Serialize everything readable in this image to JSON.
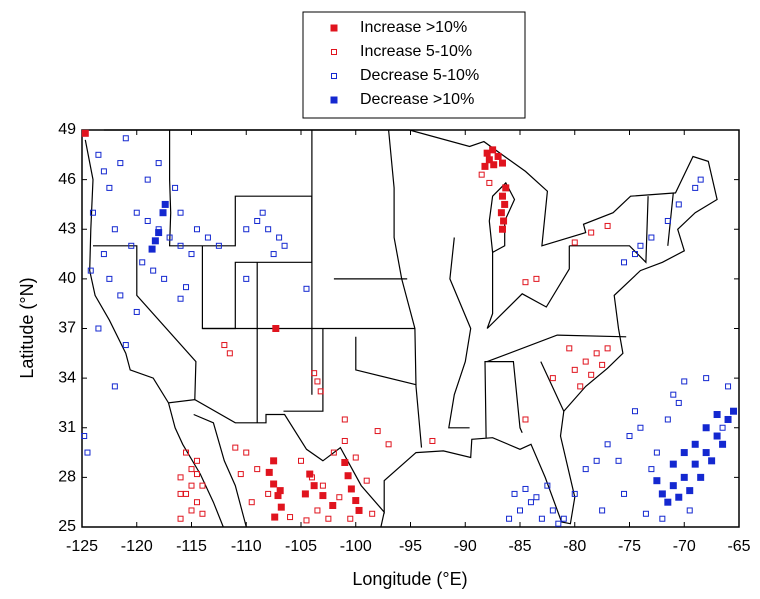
{
  "chart_data": {
    "type": "scatter",
    "x_label": "Longitude (°E)",
    "y_label": "Latitude (°N)",
    "xlim": [
      -125,
      -65
    ],
    "xticks": [
      -125,
      -120,
      -115,
      -110,
      -105,
      -100,
      -95,
      -90,
      -85,
      -80,
      -75,
      -70,
      -65
    ],
    "ylim": [
      25,
      49
    ],
    "yticks": [
      25,
      28,
      31,
      34,
      37,
      40,
      43,
      46,
      49
    ],
    "legend": "top",
    "series": [
      {
        "name": "Increase >10%",
        "color": "#e0141e",
        "marker": "filled",
        "x": [
          -86.6,
          -86.5,
          -86.7,
          -86.4,
          -86.6,
          -86.3,
          -88.2,
          -87.8,
          -87.4,
          -87.0,
          -86.6,
          -88.0,
          -87.5,
          -107.5,
          -107.9,
          -107.5,
          -107.1,
          -106.8,
          -107.4,
          -106.9,
          -104.2,
          -103.8,
          -102.1,
          -101.0,
          -100.7,
          -100.4,
          -100.0,
          -99.7,
          -103.0,
          -104.6,
          -124.7,
          -107.3
        ],
        "y": [
          43.0,
          43.5,
          44.0,
          44.5,
          45.0,
          45.5,
          46.8,
          47.2,
          46.9,
          47.4,
          47.0,
          47.6,
          47.8,
          29.0,
          28.3,
          27.6,
          26.9,
          26.2,
          25.6,
          27.2,
          28.2,
          27.5,
          26.3,
          28.9,
          28.1,
          27.3,
          26.6,
          26.0,
          26.9,
          27.0,
          48.8,
          37.0
        ]
      },
      {
        "name": "Increase 5-10%",
        "color": "#e0141e",
        "marker": "open",
        "x": [
          -116.0,
          -115.5,
          -115.0,
          -114.5,
          -114.0,
          -116.0,
          -115.5,
          -115.0,
          -114.5,
          -114.0,
          -116.0,
          -115.0,
          -114.5,
          -110.0,
          -109.0,
          -108.0,
          -105.0,
          -104.0,
          -103.0,
          -102.0,
          -101.0,
          -100.0,
          -99.0,
          -98.5,
          -106.0,
          -104.5,
          -103.5,
          -102.5,
          -101.5,
          -100.5,
          -110.5,
          -109.5,
          -111.0,
          -80.0,
          -79.0,
          -78.0,
          -77.0,
          -78.5,
          -79.5,
          -77.5,
          -80.5,
          -82.0,
          -84.5,
          -80.0,
          -78.5,
          -77.0,
          -88.5,
          -87.8,
          -84.5,
          -83.5,
          -103.8,
          -103.5,
          -103.2,
          -101.0,
          -98.0,
          -93.0,
          -97.0,
          -112.0,
          -111.5
        ],
        "y": [
          28.0,
          27.0,
          26.0,
          29.0,
          27.5,
          25.5,
          29.5,
          28.5,
          26.5,
          25.8,
          27.0,
          27.5,
          28.2,
          29.5,
          28.5,
          27.0,
          29.0,
          28.0,
          27.5,
          29.5,
          30.2,
          29.2,
          27.8,
          25.8,
          25.6,
          25.4,
          26.0,
          25.5,
          26.8,
          25.5,
          28.2,
          26.5,
          29.8,
          34.5,
          35.0,
          35.5,
          35.8,
          34.2,
          33.5,
          34.8,
          35.8,
          34.0,
          31.5,
          42.2,
          42.8,
          43.2,
          46.3,
          45.8,
          39.8,
          40.0,
          34.3,
          33.8,
          33.2,
          31.5,
          30.8,
          30.2,
          30.0,
          36.0,
          35.5
        ]
      },
      {
        "name": "Decrease 5-10%",
        "color": "#1428d0",
        "marker": "open",
        "x": [
          -123.5,
          -123.0,
          -122.5,
          -124.0,
          -121.5,
          -121.0,
          -120.0,
          -119.0,
          -118.0,
          -117.0,
          -116.0,
          -115.0,
          -120.5,
          -119.5,
          -118.5,
          -117.5,
          -114.5,
          -113.5,
          -112.5,
          -122.0,
          -123.0,
          -122.5,
          -121.5,
          -120.0,
          -121.0,
          -124.2,
          -119.0,
          -118.0,
          -116.5,
          -116.0,
          -109.0,
          -108.5,
          -108.0,
          -107.0,
          -106.5,
          -110.0,
          -107.5,
          -116.0,
          -115.5,
          -124.8,
          -124.5,
          -122.0,
          -123.5,
          -86.0,
          -85.0,
          -84.0,
          -83.0,
          -82.0,
          -81.0,
          -85.5,
          -84.5,
          -83.5,
          -82.5,
          -81.5,
          -80.0,
          -79.0,
          -78.0,
          -77.0,
          -76.0,
          -75.0,
          -74.0,
          -73.0,
          -72.0,
          -71.0,
          -70.0,
          -68.0,
          -66.0,
          -77.5,
          -75.5,
          -73.5,
          -74.5,
          -66.5,
          -69.5,
          -72.5,
          -71.5,
          -70.5,
          -74.0,
          -73.0,
          -71.5,
          -70.5,
          -69.0,
          -68.5,
          -75.5,
          -74.5,
          -104.5,
          -110.0
        ],
        "y": [
          47.5,
          46.5,
          45.5,
          44.0,
          47.0,
          48.5,
          44.0,
          43.5,
          43.0,
          42.5,
          42.0,
          41.5,
          42.0,
          41.0,
          40.5,
          40.0,
          43.0,
          42.5,
          42.0,
          43.0,
          41.5,
          40.0,
          39.0,
          38.0,
          36.0,
          40.5,
          46.0,
          47.0,
          45.5,
          44.0,
          43.5,
          44.0,
          43.0,
          42.5,
          42.0,
          43.0,
          41.5,
          38.8,
          39.5,
          30.5,
          29.5,
          33.5,
          37.0,
          25.5,
          26.0,
          26.5,
          25.5,
          26.0,
          25.5,
          27.0,
          27.3,
          26.8,
          27.5,
          25.2,
          27.0,
          28.5,
          29.0,
          30.0,
          29.0,
          30.5,
          31.0,
          28.5,
          25.5,
          33.0,
          33.8,
          34.0,
          33.5,
          26.0,
          27.0,
          25.8,
          32.0,
          31.0,
          26.0,
          29.5,
          31.5,
          32.5,
          42.0,
          42.5,
          43.5,
          44.5,
          45.5,
          46.0,
          41.0,
          41.5,
          39.4,
          40.0
        ]
      },
      {
        "name": "Decrease >10%",
        "color": "#1428d0",
        "marker": "filled",
        "x": [
          -72.0,
          -71.0,
          -70.0,
          -69.0,
          -68.0,
          -67.0,
          -66.0,
          -65.5,
          -71.5,
          -70.5,
          -69.5,
          -68.5,
          -67.5,
          -66.5,
          -70.0,
          -69.0,
          -68.0,
          -67.0,
          -72.5,
          -71.0,
          -118.3,
          -118.0,
          -117.6,
          -117.4,
          -118.6
        ],
        "y": [
          27.0,
          27.5,
          28.0,
          28.8,
          29.5,
          30.5,
          31.5,
          32.0,
          26.5,
          26.8,
          27.2,
          28.0,
          29.0,
          30.0,
          29.5,
          30.0,
          31.0,
          31.8,
          27.8,
          28.8,
          42.3,
          42.8,
          44.0,
          44.5,
          41.8
        ]
      }
    ]
  }
}
